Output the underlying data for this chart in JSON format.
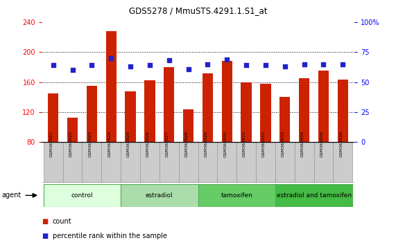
{
  "title": "GDS5278 / MmuSTS.4291.1.S1_at",
  "categories": [
    "GSM362921",
    "GSM362922",
    "GSM362923",
    "GSM362924",
    "GSM362925",
    "GSM362926",
    "GSM362927",
    "GSM362928",
    "GSM362929",
    "GSM362930",
    "GSM362931",
    "GSM362932",
    "GSM362933",
    "GSM362934",
    "GSM362935",
    "GSM362936"
  ],
  "bar_values": [
    145,
    113,
    155,
    228,
    148,
    162,
    180,
    124,
    172,
    188,
    160,
    158,
    140,
    165,
    175,
    163
  ],
  "dot_values": [
    64,
    60,
    64,
    70,
    63,
    64,
    68,
    61,
    65,
    69,
    64,
    64,
    63,
    65,
    65,
    65
  ],
  "bar_color": "#cc2200",
  "dot_color": "#2222cc",
  "ylim_left": [
    80,
    240
  ],
  "ylim_right": [
    0,
    100
  ],
  "yticks_left": [
    80,
    120,
    160,
    200,
    240
  ],
  "yticks_right": [
    0,
    25,
    50,
    75,
    100
  ],
  "yticklabels_right": [
    "0",
    "25",
    "50",
    "75",
    "100%"
  ],
  "yticklabels_left": [
    "80",
    "120",
    "160",
    "200",
    "240"
  ],
  "groups": [
    {
      "label": "control",
      "start": 0,
      "end": 3,
      "color": "#ddffdd"
    },
    {
      "label": "estradiol",
      "start": 4,
      "end": 7,
      "color": "#aaddaa"
    },
    {
      "label": "tamoxifen",
      "start": 8,
      "end": 11,
      "color": "#66cc66"
    },
    {
      "label": "estradiol and tamoxifen",
      "start": 12,
      "end": 15,
      "color": "#44bb44"
    }
  ],
  "legend_count": "count",
  "legend_percentile": "percentile rank within the sample",
  "plot_bg_color": "#ffffff",
  "grid_color": "#000000",
  "bar_bottom": 80,
  "xlabel_tick_bg": "#cccccc",
  "hgrid_values": [
    120,
    160,
    200
  ]
}
